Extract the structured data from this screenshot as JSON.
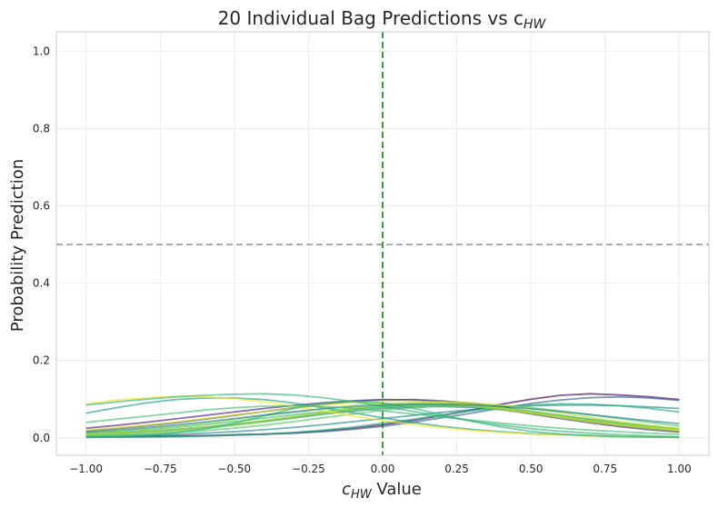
{
  "chart_data": {
    "type": "line",
    "title": "20 Individual Bag Predictions vs c",
    "title_sub": "HW",
    "xlabel_prefix": "c",
    "xlabel_sub": "HW",
    "xlabel_suffix": " Value",
    "ylabel": "Probability Prediction",
    "xlim": [
      -1.1,
      1.1
    ],
    "ylim": [
      -0.045,
      1.05
    ],
    "xticks": [
      -1.0,
      -0.75,
      -0.5,
      -0.25,
      0.0,
      0.25,
      0.5,
      0.75,
      1.0
    ],
    "xtick_labels": [
      "−1.00",
      "−0.75",
      "−0.50",
      "−0.25",
      "0.00",
      "0.25",
      "0.50",
      "0.75",
      "1.00"
    ],
    "yticks": [
      0.0,
      0.2,
      0.4,
      0.6,
      0.8,
      1.0
    ],
    "ytick_labels": [
      "0.0",
      "0.2",
      "0.4",
      "0.6",
      "0.8",
      "1.0"
    ],
    "grid": true,
    "reference_lines": [
      {
        "orientation": "horizontal",
        "value": 0.5,
        "color": "#999999",
        "style": "dashed"
      },
      {
        "orientation": "vertical",
        "value": 0.0,
        "color": "#2e8b2e",
        "style": "dashed"
      }
    ],
    "x": [
      -1.0,
      -0.9,
      -0.8,
      -0.7,
      -0.6,
      -0.5,
      -0.4,
      -0.3,
      -0.2,
      -0.1,
      0.0,
      0.1,
      0.2,
      0.3,
      0.4,
      0.5,
      0.6,
      0.7,
      0.8,
      0.9,
      1.0
    ],
    "series": [
      {
        "color": "#440154",
        "values": [
          0.003,
          0.003,
          0.004,
          0.005,
          0.006,
          0.008,
          0.01,
          0.013,
          0.018,
          0.025,
          0.034,
          0.045,
          0.058,
          0.072,
          0.087,
          0.1,
          0.11,
          0.114,
          0.111,
          0.106,
          0.099
        ]
      },
      {
        "color": "#482677",
        "values": [
          0.025,
          0.032,
          0.04,
          0.049,
          0.058,
          0.067,
          0.076,
          0.084,
          0.091,
          0.096,
          0.099,
          0.098,
          0.093,
          0.085,
          0.074,
          0.062,
          0.05,
          0.039,
          0.029,
          0.021,
          0.015
        ]
      },
      {
        "color": "#404688",
        "values": [
          0.018,
          0.024,
          0.031,
          0.039,
          0.048,
          0.058,
          0.068,
          0.078,
          0.087,
          0.094,
          0.098,
          0.099,
          0.096,
          0.089,
          0.079,
          0.067,
          0.055,
          0.043,
          0.033,
          0.025,
          0.018
        ]
      },
      {
        "color": "#33638d",
        "values": [
          0.002,
          0.002,
          0.003,
          0.004,
          0.005,
          0.007,
          0.009,
          0.012,
          0.016,
          0.022,
          0.03,
          0.04,
          0.052,
          0.064,
          0.077,
          0.089,
          0.098,
          0.104,
          0.106,
          0.103,
          0.097
        ]
      },
      {
        "color": "#2a788e",
        "values": [
          0.01,
          0.013,
          0.017,
          0.022,
          0.028,
          0.035,
          0.043,
          0.052,
          0.061,
          0.069,
          0.076,
          0.08,
          0.081,
          0.079,
          0.073,
          0.065,
          0.055,
          0.045,
          0.036,
          0.028,
          0.021
        ]
      },
      {
        "color": "#238a8d",
        "values": [
          0.004,
          0.005,
          0.007,
          0.009,
          0.012,
          0.016,
          0.021,
          0.027,
          0.034,
          0.042,
          0.05,
          0.058,
          0.066,
          0.073,
          0.079,
          0.083,
          0.085,
          0.085,
          0.083,
          0.08,
          0.076
        ]
      },
      {
        "color": "#1f9e89",
        "values": [
          0.064,
          0.078,
          0.09,
          0.099,
          0.103,
          0.103,
          0.099,
          0.09,
          0.078,
          0.065,
          0.052,
          0.04,
          0.03,
          0.022,
          0.016,
          0.011,
          0.008,
          0.006,
          0.004,
          0.003,
          0.002
        ]
      },
      {
        "color": "#20a387",
        "values": [
          0.008,
          0.011,
          0.015,
          0.02,
          0.027,
          0.035,
          0.044,
          0.054,
          0.064,
          0.073,
          0.08,
          0.085,
          0.086,
          0.084,
          0.078,
          0.069,
          0.058,
          0.047,
          0.037,
          0.028,
          0.02
        ]
      },
      {
        "color": "#29af7f",
        "values": [
          0.001,
          0.002,
          0.002,
          0.003,
          0.005,
          0.007,
          0.01,
          0.014,
          0.02,
          0.028,
          0.038,
          0.048,
          0.059,
          0.07,
          0.079,
          0.085,
          0.088,
          0.087,
          0.083,
          0.076,
          0.067
        ]
      },
      {
        "color": "#3bbb75",
        "values": [
          0.012,
          0.016,
          0.021,
          0.027,
          0.034,
          0.042,
          0.051,
          0.06,
          0.068,
          0.076,
          0.082,
          0.085,
          0.085,
          0.082,
          0.076,
          0.068,
          0.058,
          0.048,
          0.039,
          0.031,
          0.024
        ]
      },
      {
        "color": "#55c667",
        "values": [
          0.005,
          0.007,
          0.01,
          0.014,
          0.019,
          0.025,
          0.033,
          0.042,
          0.052,
          0.062,
          0.071,
          0.078,
          0.083,
          0.085,
          0.083,
          0.078,
          0.07,
          0.06,
          0.05,
          0.04,
          0.031
        ]
      },
      {
        "color": "#73d055",
        "values": [
          0.007,
          0.009,
          0.013,
          0.018,
          0.024,
          0.032,
          0.041,
          0.051,
          0.061,
          0.071,
          0.079,
          0.084,
          0.086,
          0.083,
          0.077,
          0.068,
          0.057,
          0.046,
          0.036,
          0.027,
          0.02
        ]
      },
      {
        "color": "#95d840",
        "values": [
          0.013,
          0.017,
          0.023,
          0.03,
          0.038,
          0.047,
          0.057,
          0.067,
          0.076,
          0.084,
          0.089,
          0.09,
          0.088,
          0.082,
          0.073,
          0.063,
          0.052,
          0.041,
          0.032,
          0.024,
          0.018
        ]
      },
      {
        "color": "#b8de29",
        "values": [
          0.009,
          0.012,
          0.016,
          0.021,
          0.028,
          0.036,
          0.045,
          0.055,
          0.066,
          0.076,
          0.085,
          0.091,
          0.093,
          0.091,
          0.085,
          0.076,
          0.065,
          0.053,
          0.042,
          0.032,
          0.024
        ]
      },
      {
        "color": "#dce319",
        "values": [
          0.02,
          0.026,
          0.033,
          0.041,
          0.05,
          0.059,
          0.068,
          0.077,
          0.085,
          0.091,
          0.095,
          0.095,
          0.092,
          0.086,
          0.077,
          0.066,
          0.055,
          0.044,
          0.035,
          0.027,
          0.02
        ]
      },
      {
        "color": "#fde725",
        "values": [
          0.088,
          0.098,
          0.104,
          0.107,
          0.106,
          0.101,
          0.093,
          0.082,
          0.07,
          0.057,
          0.045,
          0.035,
          0.026,
          0.019,
          0.014,
          0.01,
          0.007,
          0.005,
          0.004,
          0.003,
          0.002
        ]
      },
      {
        "color": "#2fb47c",
        "values": [
          0.002,
          0.004,
          0.007,
          0.013,
          0.023,
          0.038,
          0.057,
          0.076,
          0.09,
          0.095,
          0.09,
          0.077,
          0.06,
          0.043,
          0.028,
          0.017,
          0.01,
          0.006,
          0.003,
          0.002,
          0.001
        ]
      },
      {
        "color": "#26828e",
        "values": [
          0.015,
          0.02,
          0.026,
          0.033,
          0.041,
          0.05,
          0.059,
          0.067,
          0.075,
          0.081,
          0.085,
          0.087,
          0.087,
          0.085,
          0.081,
          0.075,
          0.068,
          0.06,
          0.052,
          0.044,
          0.037
        ]
      },
      {
        "color": "#45bf70",
        "values": [
          0.04,
          0.048,
          0.056,
          0.064,
          0.072,
          0.078,
          0.082,
          0.083,
          0.081,
          0.077,
          0.07,
          0.062,
          0.054,
          0.046,
          0.038,
          0.031,
          0.025,
          0.02,
          0.016,
          0.012,
          0.009
        ]
      },
      {
        "color": "#34b679",
        "values": [
          0.085,
          0.093,
          0.1,
          0.106,
          0.11,
          0.113,
          0.114,
          0.111,
          0.104,
          0.094,
          0.082,
          0.069,
          0.056,
          0.044,
          0.033,
          0.024,
          0.017,
          0.012,
          0.008,
          0.005,
          0.003
        ]
      }
    ]
  }
}
